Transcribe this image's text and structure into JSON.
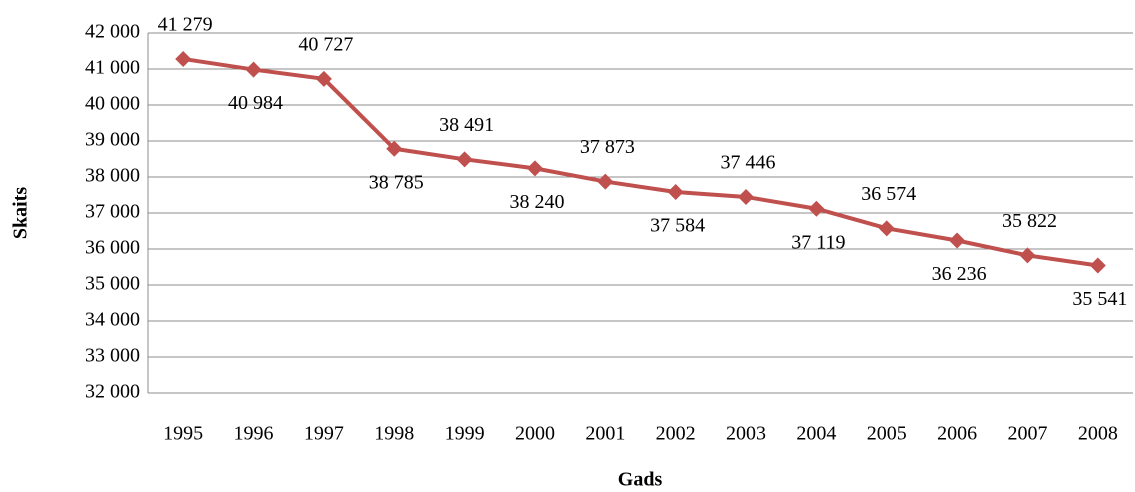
{
  "chart_data": {
    "type": "line",
    "x_label": "Gads",
    "y_label": "Skaits",
    "categories": [
      "1995",
      "1996",
      "1997",
      "1998",
      "1999",
      "2000",
      "2001",
      "2002",
      "2003",
      "2004",
      "2005",
      "2006",
      "2007",
      "2008"
    ],
    "series": [
      {
        "color": "#c0504d",
        "values": [
          41279,
          40984,
          40727,
          38785,
          38491,
          38240,
          37873,
          37584,
          37446,
          37119,
          36574,
          36236,
          35822,
          35541
        ],
        "value_labels": [
          "41 279",
          "40 984",
          "40 727",
          "38 785",
          "38 491",
          "38 240",
          "37 873",
          "37 584",
          "37 446",
          "37 119",
          "36 574",
          "36 236",
          "35 822",
          "35 541"
        ]
      }
    ],
    "ylim": [
      32000,
      42000
    ],
    "yticks": [
      {
        "value": 32000,
        "label": "32 000"
      },
      {
        "value": 33000,
        "label": "33 000"
      },
      {
        "value": 34000,
        "label": "34 000"
      },
      {
        "value": 35000,
        "label": "35 000"
      },
      {
        "value": 36000,
        "label": "36 000"
      },
      {
        "value": 37000,
        "label": "37 000"
      },
      {
        "value": 38000,
        "label": "38 000"
      },
      {
        "value": 39000,
        "label": "39 000"
      },
      {
        "value": 40000,
        "label": "40 000"
      },
      {
        "value": 41000,
        "label": "41 000"
      },
      {
        "value": 42000,
        "label": "42 000"
      }
    ],
    "grid": true
  }
}
